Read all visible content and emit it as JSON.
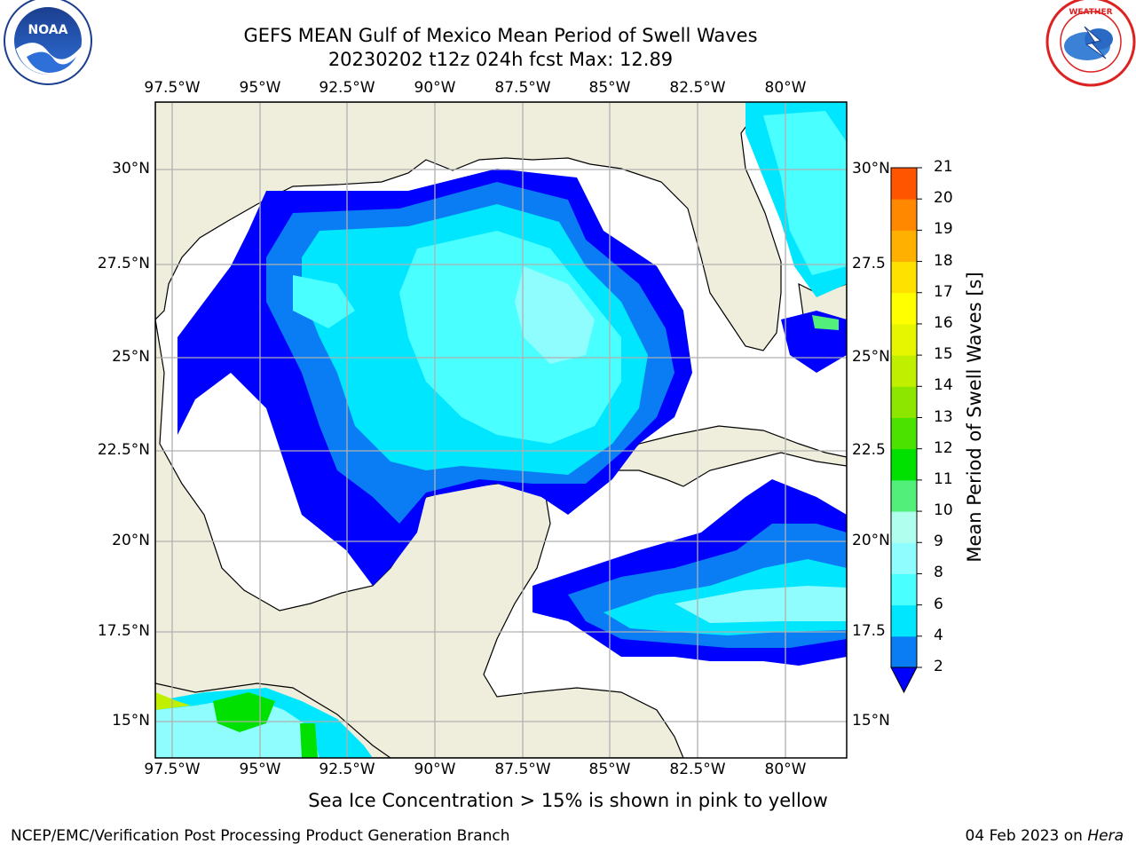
{
  "title_line1": "GEFS MEAN Gulf of Mexico Mean Period of Swell Waves",
  "title_line2": "20230202 t12z 024h fcst   Max: 12.89",
  "map": {
    "lon_labels": [
      "97.5°W",
      "95°W",
      "92.5°W",
      "90°W",
      "87.5°W",
      "85°W",
      "82.5°W",
      "80°W"
    ],
    "lat_labels": [
      "30°N",
      "27.5°N",
      "25°N",
      "22.5°N",
      "20°N",
      "17.5°N",
      "15°N"
    ],
    "right_lat_labels": [
      "30°N",
      "27.5",
      "25°N",
      "22.5",
      "20°N",
      "17.5",
      "15°N"
    ],
    "land_color": "#efeedd",
    "ocean_color": "#ffffff",
    "grid_color": "#b0b0b0"
  },
  "colorbar": {
    "title": "Mean Period of Swell Waves [s]",
    "ticks": [
      "2",
      "4",
      "6",
      "8",
      "9",
      "10",
      "11",
      "12",
      "13",
      "14",
      "15",
      "16",
      "17",
      "18",
      "19",
      "20",
      "21"
    ],
    "colors": [
      "#0a7df5",
      "#00e6ff",
      "#49ffff",
      "#8ffdfd",
      "#b0ffee",
      "#52ef7a",
      "#00e100",
      "#4ce200",
      "#8ce600",
      "#c0f000",
      "#e6f500",
      "#ffff00",
      "#ffe100",
      "#ffb000",
      "#ff8800",
      "#ff5500",
      "#ff2200",
      "#ff0000"
    ],
    "under_color": "#0000ff"
  },
  "bottom_note": "Sea Ice Concentration > 15% is shown in pink to yellow",
  "footer": {
    "left": "NCEP/EMC/Verification Post Processing Product Generation Branch",
    "right_date": "04 Feb 2023 on",
    "right_host": "Hera"
  },
  "logos": {
    "left": "noaa-logo",
    "right": "nws-logo"
  }
}
